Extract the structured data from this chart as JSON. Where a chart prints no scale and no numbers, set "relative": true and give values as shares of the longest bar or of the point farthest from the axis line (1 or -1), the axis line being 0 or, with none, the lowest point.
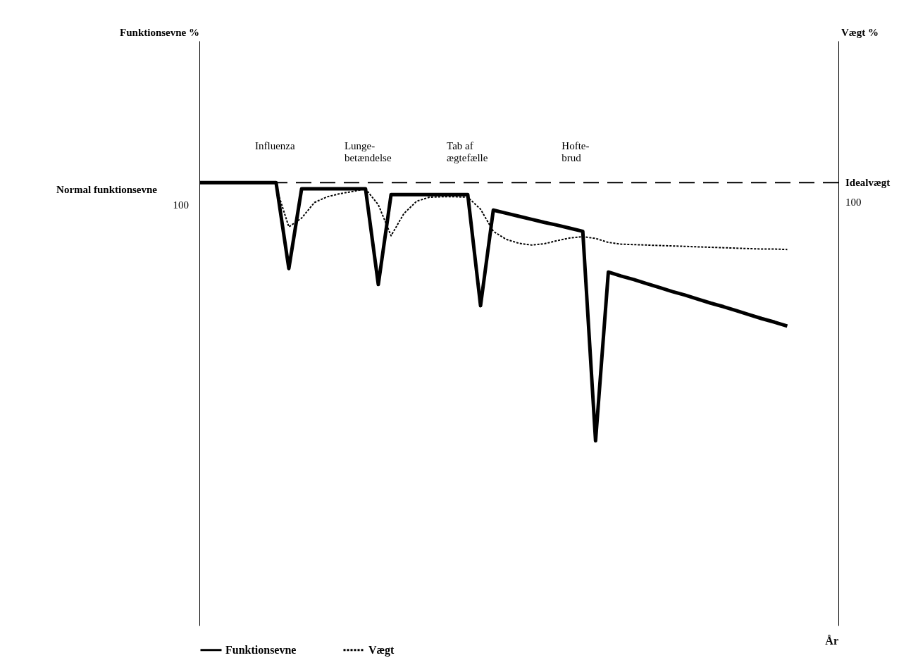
{
  "chart_data": {
    "type": "line",
    "relative": true,
    "xlabel": "År",
    "grid": false,
    "legend": "bottom",
    "marker": "none",
    "categories": [
      null,
      null,
      null,
      null,
      null,
      null,
      null,
      null,
      null,
      null,
      null,
      null,
      null,
      null,
      null,
      null,
      null,
      null,
      null,
      null,
      null,
      null,
      null,
      null,
      null,
      null,
      null,
      null,
      null,
      null,
      null,
      null,
      null,
      null,
      null,
      null,
      null,
      null,
      null,
      null,
      null,
      null,
      null,
      null,
      null,
      null,
      null,
      null,
      null,
      null,
      null
    ],
    "series": [
      {
        "name": "Funktionsevne",
        "color": "#000000",
        "line_style": "solid",
        "values": [
          1,
          1,
          1,
          1,
          1,
          1,
          1,
          0.806,
          0.986,
          0.986,
          0.986,
          0.986,
          0.986,
          0.986,
          0.77,
          0.973,
          0.973,
          0.973,
          0.973,
          0.973,
          0.973,
          0.973,
          0.722,
          0.938,
          0.931,
          0.924,
          0.917,
          0.91,
          0.904,
          0.897,
          0.89,
          0.417,
          0.798,
          0.789,
          0.781,
          0.772,
          0.763,
          0.754,
          0.746,
          0.737,
          0.728,
          0.72,
          0.711,
          0.702,
          0.693,
          0.685,
          0.676,
          null,
          null,
          null,
          null
        ]
      },
      {
        "name": "Vægt",
        "color": "#000000",
        "line_style": "dashed",
        "values": [
          null,
          null,
          null,
          null,
          null,
          null,
          0.99,
          0.9,
          0.92,
          0.955,
          0.968,
          0.975,
          0.98,
          0.986,
          0.95,
          0.88,
          0.93,
          0.958,
          0.967,
          0.968,
          0.968,
          0.967,
          0.94,
          0.89,
          0.872,
          0.863,
          0.859,
          0.862,
          0.869,
          0.875,
          0.878,
          0.874,
          0.865,
          0.861,
          0.86,
          0.859,
          0.858,
          0.857,
          0.856,
          0.855,
          0.854,
          0.853,
          0.852,
          0.851,
          0.85,
          0.85,
          0.849,
          null,
          null,
          null,
          null
        ]
      }
    ],
    "ref_lines": [
      {
        "axis": "y",
        "value": 1,
        "label": "Idealvægt",
        "line_style": "dashed",
        "color": "#000000"
      }
    ],
    "annotations": [
      "Normal funktionsevne",
      "100",
      "100",
      "Funktionsevne %",
      "Vægt %",
      "Influenza",
      "Lunge-\nbetændelse",
      "Tab af\nægtefælle",
      "Hofte-\nbrud"
    ]
  }
}
